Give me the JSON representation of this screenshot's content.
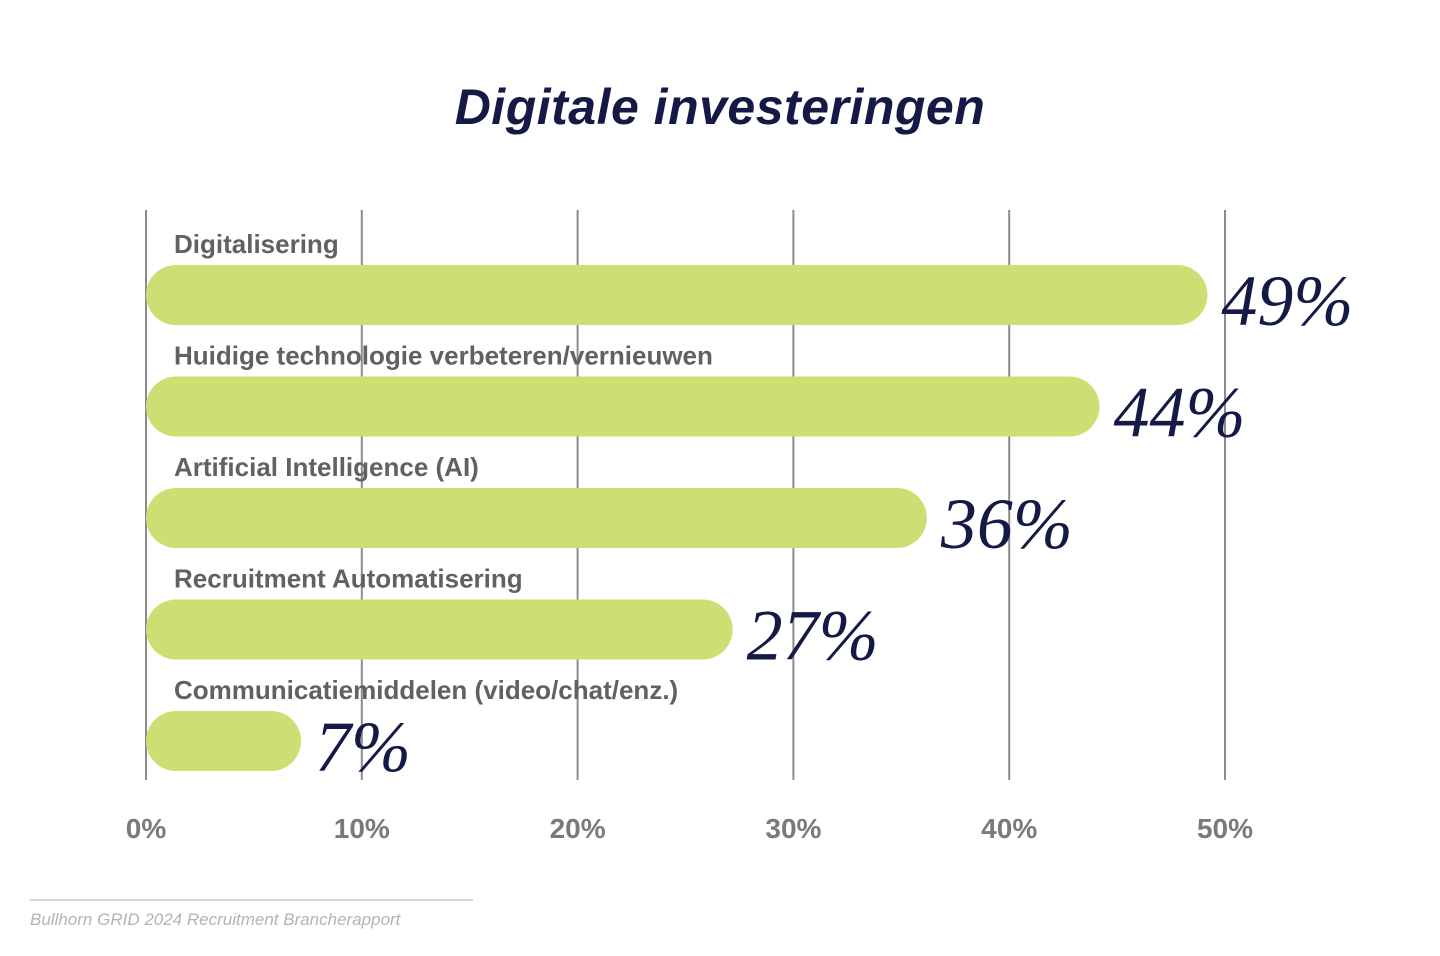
{
  "chart_data": {
    "type": "bar",
    "orientation": "horizontal",
    "title": "Digitale investeringen",
    "categories": [
      "Digitalisering",
      "Huidige technologie verbeteren/vernieuwen",
      "Artificial Intelligence (AI)",
      "Recruitment Automatisering",
      "Communicatiemiddelen (video/chat/enz.)"
    ],
    "values": [
      49,
      44,
      36,
      27,
      7
    ],
    "value_labels": [
      "49%",
      "44%",
      "36%",
      "27%",
      "7%"
    ],
    "xlim": [
      0,
      50
    ],
    "x_ticks": [
      0,
      10,
      20,
      30,
      40,
      50
    ],
    "x_tick_labels": [
      "0%",
      "10%",
      "20%",
      "30%",
      "40%",
      "50%"
    ],
    "grid": true,
    "legend": "none",
    "bar_color": "#cddf72",
    "value_color": "#141a45",
    "grid_color": "#8c8c8c"
  },
  "source": "Bullhorn GRID 2024 Recruitment Brancherapport"
}
